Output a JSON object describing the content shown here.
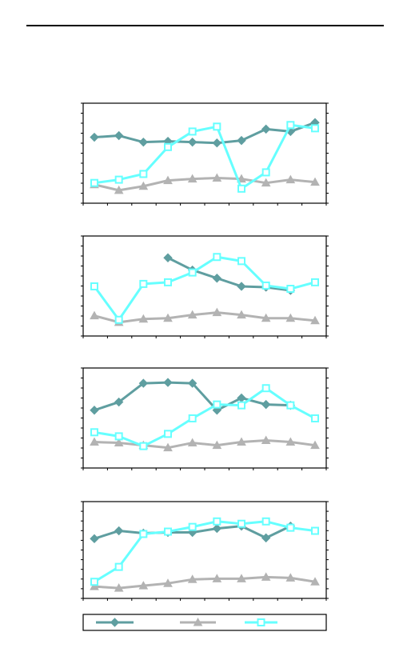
{
  "colors": {
    "series_a": "#5f9ea0",
    "series_b": "#b3b3b3",
    "series_c": "#66ffff",
    "axis": "#000000",
    "background": "#ffffff"
  },
  "chart_data": [
    {
      "type": "line",
      "x": [
        1,
        2,
        3,
        4,
        5,
        6,
        7,
        8,
        9,
        10
      ],
      "ylim": [
        0,
        1
      ],
      "grid": false,
      "legend": "bottom",
      "series": [
        {
          "marker": "diamond",
          "color": "#5f9ea0",
          "values": [
            0.72,
            0.74,
            0.66,
            0.67,
            0.66,
            0.65,
            0.68,
            0.82,
            0.79,
            0.9
          ]
        },
        {
          "marker": "triangle",
          "color": "#b3b3b3",
          "values": [
            0.14,
            0.07,
            0.12,
            0.19,
            0.21,
            0.22,
            0.21,
            0.16,
            0.2,
            0.17
          ]
        },
        {
          "marker": "square",
          "color": "#66ffff",
          "values": [
            0.16,
            0.2,
            0.27,
            0.6,
            0.79,
            0.85,
            0.09,
            0.29,
            0.87,
            0.83
          ]
        }
      ]
    },
    {
      "type": "line",
      "x": [
        1,
        2,
        3,
        4,
        5,
        6,
        7,
        8,
        9,
        10
      ],
      "ylim": [
        0,
        1
      ],
      "grid": false,
      "legend": "bottom",
      "series": [
        {
          "marker": "diamond",
          "color": "#5f9ea0",
          "values": [
            null,
            null,
            null,
            0.87,
            0.72,
            0.62,
            0.52,
            0.51,
            0.47,
            null
          ]
        },
        {
          "marker": "triangle",
          "color": "#b3b3b3",
          "values": [
            0.16,
            0.08,
            0.12,
            0.13,
            0.17,
            0.2,
            0.17,
            0.13,
            0.13,
            0.1
          ]
        },
        {
          "marker": "square",
          "color": "#66ffff",
          "values": [
            0.52,
            0.11,
            0.55,
            0.57,
            0.69,
            0.88,
            0.83,
            0.53,
            0.49,
            0.57
          ]
        }
      ]
    },
    {
      "type": "line",
      "x": [
        1,
        2,
        3,
        4,
        5,
        6,
        7,
        8,
        9,
        10
      ],
      "ylim": [
        0,
        1
      ],
      "grid": false,
      "legend": "bottom",
      "series": [
        {
          "marker": "diamond",
          "color": "#5f9ea0",
          "values": [
            0.62,
            0.72,
            0.95,
            0.96,
            0.95,
            0.62,
            0.77,
            0.69,
            0.68,
            null
          ]
        },
        {
          "marker": "triangle",
          "color": "#b3b3b3",
          "values": [
            0.23,
            0.22,
            0.19,
            0.16,
            0.22,
            0.19,
            0.23,
            0.25,
            0.23,
            0.19
          ]
        },
        {
          "marker": "square",
          "color": "#66ffff",
          "values": [
            0.35,
            0.3,
            0.18,
            0.33,
            0.52,
            0.69,
            0.68,
            0.89,
            0.68,
            0.52
          ]
        }
      ]
    },
    {
      "type": "line",
      "x": [
        1,
        2,
        3,
        4,
        5,
        6,
        7,
        8,
        9,
        10
      ],
      "ylim": [
        0,
        1
      ],
      "grid": false,
      "legend": "bottom",
      "series": [
        {
          "marker": "diamond",
          "color": "#5f9ea0",
          "values": [
            0.67,
            0.77,
            0.74,
            0.75,
            0.75,
            0.8,
            0.83,
            0.68,
            0.83,
            null
          ]
        },
        {
          "marker": "triangle",
          "color": "#b3b3b3",
          "values": [
            0.06,
            0.04,
            0.07,
            0.1,
            0.15,
            0.16,
            0.16,
            0.18,
            0.17,
            0.12
          ]
        },
        {
          "marker": "square",
          "color": "#66ffff",
          "values": [
            0.12,
            0.31,
            0.73,
            0.76,
            0.82,
            0.89,
            0.86,
            0.89,
            0.81,
            0.77
          ]
        }
      ]
    }
  ]
}
